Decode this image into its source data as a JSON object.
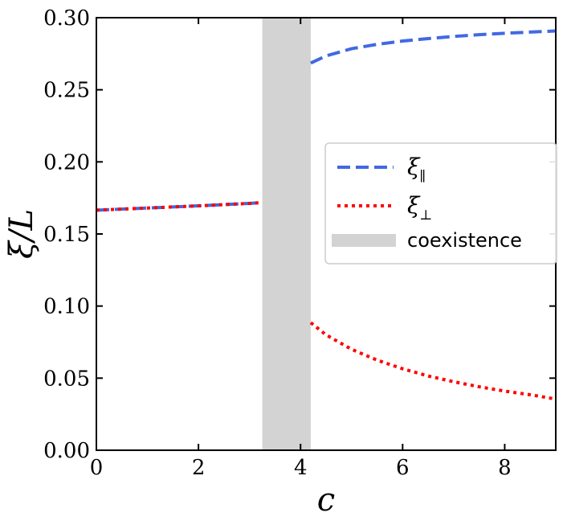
{
  "chart_data": {
    "type": "line",
    "xlabel": "c",
    "ylabel": "ξ/L",
    "xlim": [
      0,
      9
    ],
    "ylim": [
      0.0,
      0.3
    ],
    "x_ticks": [
      0,
      2,
      4,
      6,
      8
    ],
    "x_tick_labels": [
      "0",
      "2",
      "4",
      "6",
      "8"
    ],
    "y_ticks": [
      0.0,
      0.05,
      0.1,
      0.15,
      0.2,
      0.25,
      0.3
    ],
    "y_tick_labels": [
      "0.00",
      "0.05",
      "0.10",
      "0.15",
      "0.20",
      "0.25",
      "0.30"
    ],
    "grid": false,
    "legend_position": "center-right",
    "shaded_region": {
      "x_range": [
        3.25,
        4.2
      ],
      "color": "#d3d3d3",
      "label": "coexistence"
    },
    "series": [
      {
        "name": "ξ∥",
        "name_base": "ξ",
        "name_sub": "∥",
        "color": "#4169e1",
        "style": "dashed",
        "segments": [
          {
            "x": [
              0,
              1,
              2,
              3,
              3.25
            ],
            "y": [
              0.1665,
              0.168,
              0.1695,
              0.1712,
              0.1718
            ]
          },
          {
            "x": [
              4.2,
              4.5,
              5,
              5.5,
              6,
              6.5,
              7,
              7.5,
              8,
              8.5,
              9
            ],
            "y": [
              0.2685,
              0.2735,
              0.2785,
              0.2815,
              0.2838,
              0.2855,
              0.287,
              0.2882,
              0.2892,
              0.29,
              0.2908
            ]
          }
        ]
      },
      {
        "name": "ξ⊥",
        "name_base": "ξ",
        "name_sub": "⊥",
        "color": "#ff0000",
        "style": "dotted",
        "segments": [
          {
            "x": [
              0,
              1,
              2,
              3,
              3.25
            ],
            "y": [
              0.1665,
              0.168,
              0.1695,
              0.1712,
              0.1718
            ]
          },
          {
            "x": [
              4.2,
              4.5,
              5,
              5.5,
              6,
              6.5,
              7,
              7.5,
              8,
              8.5,
              9
            ],
            "y": [
              0.0885,
              0.08,
              0.07,
              0.0625,
              0.0565,
              0.0515,
              0.0475,
              0.044,
              0.041,
              0.0385,
              0.0355
            ]
          }
        ]
      }
    ]
  }
}
